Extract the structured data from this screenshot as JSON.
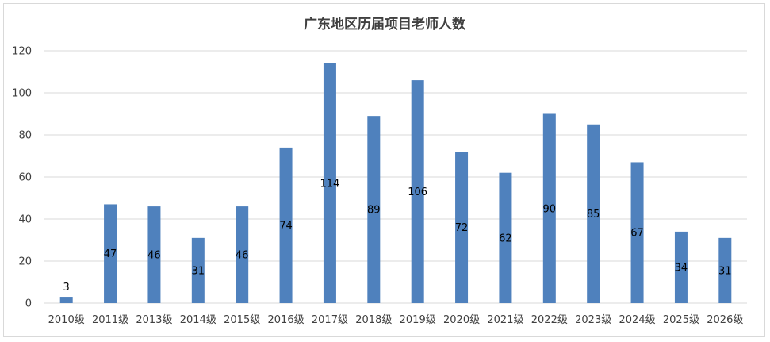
{
  "chart_data": {
    "type": "bar",
    "title": "广东地区历届项目老师人数",
    "xlabel": "",
    "ylabel": "",
    "categories": [
      "2010级",
      "2011级",
      "2013级",
      "2014级",
      "2015级",
      "2016级",
      "2017级",
      "2018级",
      "2019级",
      "2020级",
      "2021级",
      "2022级",
      "2023级",
      "2024级",
      "2025级",
      "2026级"
    ],
    "values": [
      3,
      47,
      46,
      31,
      46,
      74,
      114,
      89,
      106,
      72,
      62,
      90,
      85,
      67,
      34,
      31
    ],
    "ylim": [
      0,
      120
    ],
    "yticks": [
      "0",
      "20",
      "40",
      "60",
      "80",
      "100",
      "120"
    ],
    "grid": true,
    "legend": "none",
    "data_labels": true,
    "colors": {
      "bar": "#4f81bd",
      "gridline": "#d9d9d9",
      "text": "#404040"
    }
  }
}
